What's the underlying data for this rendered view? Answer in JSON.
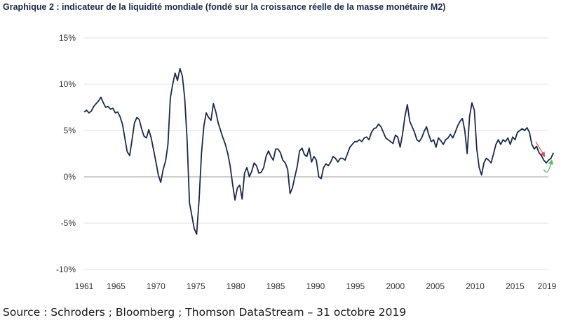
{
  "title": "Graphique 2 : indicateur de la liquidité mondiale (fondé sur la croissance réelle de la masse monétaire M2)",
  "source": "Source : Schroders ; Bloomberg ; Thomson DataStream – 31 octobre 2019",
  "colors": {
    "line": "#1c2a4a",
    "grid": "#e2e2e2",
    "zero": "#bdbdbd",
    "arrow_down": "#d9534f",
    "arrow_up": "#5cb85c"
  },
  "chart_data": {
    "type": "line",
    "title": "Graphique 2 : indicateur de la liquidité mondiale (fondé sur la croissance réelle de la masse monétaire M2)",
    "xlabel": "",
    "ylabel": "",
    "xlim": [
      1961,
      2019.8
    ],
    "ylim": [
      -10,
      15
    ],
    "grid": true,
    "legend": "none",
    "x_ticks": [
      1961,
      1965,
      1970,
      1975,
      1980,
      1985,
      1990,
      1995,
      2000,
      2005,
      2010,
      2015,
      2019
    ],
    "x_tick_labels": [
      "1961",
      "1965",
      "1970",
      "1975",
      "1980",
      "1985",
      "1990",
      "1995",
      "2000",
      "2005",
      "2010",
      "2015",
      "2019"
    ],
    "y_ticks": [
      -10,
      -5,
      0,
      5,
      10,
      15
    ],
    "y_tick_labels": [
      "-10%",
      "-5%",
      "0%",
      "5%",
      "10%",
      "15%"
    ],
    "series": [
      {
        "name": "Indicateur de liquidité mondiale",
        "x": [
          1961.0,
          1961.3,
          1961.6,
          1961.9,
          1962.2,
          1962.5,
          1962.8,
          1963.1,
          1963.4,
          1963.7,
          1964.0,
          1964.3,
          1964.6,
          1964.9,
          1965.2,
          1965.5,
          1965.8,
          1966.1,
          1966.4,
          1966.7,
          1967.0,
          1967.3,
          1967.6,
          1967.9,
          1968.2,
          1968.5,
          1968.8,
          1969.1,
          1969.4,
          1969.7,
          1970.0,
          1970.3,
          1970.6,
          1970.9,
          1971.2,
          1971.5,
          1971.8,
          1972.1,
          1972.4,
          1972.7,
          1973.0,
          1973.3,
          1973.6,
          1973.9,
          1974.2,
          1974.5,
          1974.8,
          1975.1,
          1975.4,
          1975.7,
          1976.0,
          1976.3,
          1976.6,
          1976.9,
          1977.2,
          1977.5,
          1977.8,
          1978.1,
          1978.4,
          1978.7,
          1979.0,
          1979.3,
          1979.6,
          1979.9,
          1980.2,
          1980.5,
          1980.8,
          1981.1,
          1981.4,
          1981.7,
          1982.0,
          1982.3,
          1982.6,
          1982.9,
          1983.2,
          1983.5,
          1983.8,
          1984.1,
          1984.4,
          1984.7,
          1985.0,
          1985.3,
          1985.6,
          1985.9,
          1986.2,
          1986.5,
          1986.8,
          1987.1,
          1987.4,
          1987.7,
          1988.0,
          1988.3,
          1988.6,
          1988.9,
          1989.2,
          1989.5,
          1989.8,
          1990.1,
          1990.4,
          1990.7,
          1991.0,
          1991.3,
          1991.6,
          1991.9,
          1992.2,
          1992.5,
          1992.8,
          1993.1,
          1993.4,
          1993.7,
          1994.0,
          1994.3,
          1994.6,
          1994.9,
          1995.2,
          1995.5,
          1995.8,
          1996.1,
          1996.4,
          1996.7,
          1997.0,
          1997.3,
          1997.6,
          1997.9,
          1998.2,
          1998.5,
          1998.8,
          1999.1,
          1999.4,
          1999.7,
          2000.0,
          2000.3,
          2000.6,
          2000.9,
          2001.2,
          2001.5,
          2001.8,
          2002.1,
          2002.4,
          2002.7,
          2003.0,
          2003.3,
          2003.6,
          2003.9,
          2004.2,
          2004.5,
          2004.8,
          2005.1,
          2005.4,
          2005.7,
          2006.0,
          2006.3,
          2006.6,
          2006.9,
          2007.2,
          2007.5,
          2007.8,
          2008.1,
          2008.4,
          2008.7,
          2009.0,
          2009.3,
          2009.6,
          2009.9,
          2010.2,
          2010.5,
          2010.8,
          2011.1,
          2011.4,
          2011.7,
          2012.0,
          2012.3,
          2012.6,
          2012.9,
          2013.2,
          2013.5,
          2013.8,
          2014.1,
          2014.4,
          2014.7,
          2015.0,
          2015.3,
          2015.6,
          2015.9,
          2016.2,
          2016.5,
          2016.8,
          2017.1,
          2017.4,
          2017.7,
          2018.0,
          2018.3,
          2018.6,
          2018.9,
          2019.2,
          2019.5,
          2019.8
        ],
        "y": [
          7.0,
          7.2,
          6.9,
          7.1,
          7.6,
          7.9,
          8.2,
          8.6,
          8.0,
          7.5,
          7.6,
          7.3,
          7.4,
          6.9,
          7.0,
          6.5,
          5.7,
          4.2,
          2.7,
          2.3,
          4.0,
          5.8,
          6.4,
          6.2,
          5.2,
          4.4,
          4.2,
          5.1,
          4.2,
          2.9,
          1.6,
          0.2,
          -0.6,
          0.8,
          1.7,
          3.5,
          8.5,
          10.0,
          11.2,
          10.4,
          11.7,
          10.9,
          8.5,
          4.0,
          -2.8,
          -4.2,
          -5.6,
          -6.2,
          -2.5,
          2.5,
          5.5,
          6.9,
          6.4,
          6.1,
          7.9,
          7.0,
          5.8,
          5.0,
          4.2,
          3.5,
          2.5,
          1.2,
          -0.8,
          -2.5,
          -1.2,
          -0.9,
          -2.4,
          0.4,
          1.0,
          0.0,
          0.6,
          1.5,
          1.2,
          0.4,
          0.5,
          1.0,
          2.2,
          2.8,
          2.2,
          1.8,
          3.0,
          3.0,
          2.6,
          1.8,
          1.5,
          0.8,
          -1.8,
          -1.2,
          0.0,
          1.1,
          2.8,
          3.1,
          2.4,
          2.2,
          3.1,
          1.6,
          2.2,
          1.8,
          0.0,
          -0.2,
          1.0,
          1.4,
          1.2,
          1.6,
          2.2,
          2.0,
          1.6,
          2.0,
          2.0,
          1.8,
          2.5,
          3.2,
          3.5,
          3.8,
          3.8,
          4.0,
          3.8,
          4.2,
          4.3,
          4.0,
          4.8,
          5.2,
          5.3,
          5.7,
          5.4,
          4.8,
          4.2,
          4.0,
          3.8,
          3.6,
          4.5,
          4.3,
          3.2,
          4.6,
          6.5,
          7.8,
          6.0,
          5.4,
          4.8,
          4.0,
          3.8,
          4.2,
          4.9,
          5.4,
          4.5,
          3.8,
          4.0,
          3.2,
          4.2,
          3.9,
          3.5,
          4.0,
          4.2,
          4.6,
          4.2,
          4.8,
          5.5,
          6.0,
          6.3,
          5.0,
          2.5,
          6.5,
          8.0,
          7.2,
          3.0,
          1.0,
          0.2,
          1.5,
          2.0,
          1.8,
          1.5,
          2.5,
          3.5,
          4.0,
          3.5,
          4.0,
          3.8,
          4.2,
          3.5,
          4.3,
          4.0,
          4.8,
          5.0,
          5.2,
          5.0,
          5.3,
          4.8,
          3.5,
          3.0,
          3.3,
          2.6,
          2.3,
          1.8,
          1.5,
          1.8,
          2.0,
          2.6
        ]
      }
    ],
    "annotations": [
      {
        "type": "arrow",
        "color": "red",
        "direction": "down",
        "from_x": 2017.6,
        "from_y": 3.8,
        "to_x": 2018.7,
        "to_y": 2.2
      },
      {
        "type": "arrow",
        "color": "green",
        "direction": "up-curve",
        "from_x": 2018.6,
        "from_y": 0.8,
        "to_x": 2019.6,
        "to_y": 1.8
      }
    ]
  }
}
